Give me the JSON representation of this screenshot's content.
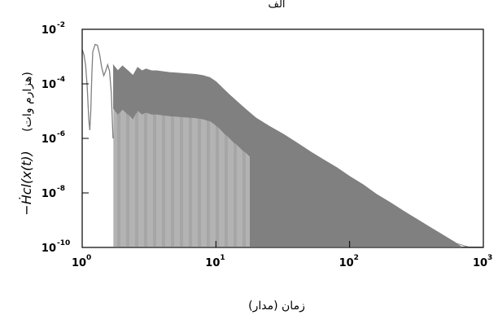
{
  "chart_data": {
    "type": "line",
    "title": "الف",
    "xlabel": "زمان (مدار)",
    "ylabel": "−Ḣ_cl(x(t)) (هزارم وات)",
    "ylabel_formula": "−Ḣcl(x(t))",
    "ylabel_unit": "(هزارم وات)",
    "x_scale": "log",
    "y_scale": "log",
    "xlim": [
      1,
      1000
    ],
    "ylim": [
      1e-10,
      0.01
    ],
    "x_ticks": [
      {
        "value": 1,
        "base": "10",
        "exp": "0"
      },
      {
        "value": 10,
        "base": "10",
        "exp": "1"
      },
      {
        "value": 100,
        "base": "10",
        "exp": "2"
      },
      {
        "value": 1000,
        "base": "10",
        "exp": "3"
      }
    ],
    "y_ticks": [
      {
        "value": 1e-10,
        "base": "10",
        "exp": "-10"
      },
      {
        "value": 1e-08,
        "base": "10",
        "exp": "-8"
      },
      {
        "value": 1e-06,
        "base": "10",
        "exp": "-6"
      },
      {
        "value": 0.0001,
        "base": "10",
        "exp": "-4"
      },
      {
        "value": 0.01,
        "base": "10",
        "exp": "-2"
      }
    ],
    "grid": false,
    "line_color": "#808080",
    "envelope": {
      "x": [
        1,
        1.05,
        1.12,
        1.2,
        1.3,
        1.4,
        1.55,
        1.7,
        1.85,
        2.0,
        2.2,
        2.4,
        2.6,
        2.8,
        3.0,
        3.3,
        3.6,
        4.0,
        4.5,
        5.0,
        5.6,
        6.3,
        7.1,
        8.0,
        9.0,
        10,
        11.2,
        12.6,
        14,
        16,
        18,
        20,
        25,
        32,
        40,
        50,
        63,
        80,
        100,
        126,
        158,
        200,
        251,
        316,
        398,
        501,
        631,
        794,
        1000
      ],
      "y": [
        0.0018,
        0.0012,
        0.0004,
        0.0016,
        0.003,
        0.0028,
        0.0012,
        0.0005,
        0.0003,
        0.00045,
        0.0003,
        0.0002,
        0.0004,
        0.0003,
        0.00035,
        0.0003,
        0.0003,
        0.00028,
        0.00026,
        0.00025,
        0.00024,
        0.00023,
        0.00022,
        0.0002,
        0.00017,
        0.00012,
        7e-05,
        4e-05,
        2.5e-05,
        1.4e-05,
        8.5e-06,
        5.5e-06,
        2.8e-06,
        1.4e-06,
        7e-07,
        3.4e-07,
        1.7e-07,
        8.5e-08,
        4e-08,
        2e-08,
        9e-09,
        4.5e-09,
        2.2e-09,
        1.1e-09,
        5.5e-10,
        2.8e-10,
        1.4e-10,
        7e-11,
        3e-11
      ]
    },
    "early_curve": {
      "x": [
        1,
        1.03,
        1.06,
        1.09,
        1.12,
        1.14,
        1.16,
        1.18,
        1.2,
        1.25,
        1.3,
        1.35,
        1.4,
        1.45,
        1.5,
        1.55,
        1.6,
        1.65,
        1.7
      ],
      "y": [
        0.0018,
        0.0012,
        0.0005,
        8e-05,
        5e-06,
        2e-06,
        1e-05,
        0.0002,
        0.0015,
        0.0028,
        0.0026,
        0.0012,
        0.0004,
        0.0002,
        0.0003,
        0.0005,
        0.0003,
        5e-05,
        1e-06
      ]
    }
  }
}
